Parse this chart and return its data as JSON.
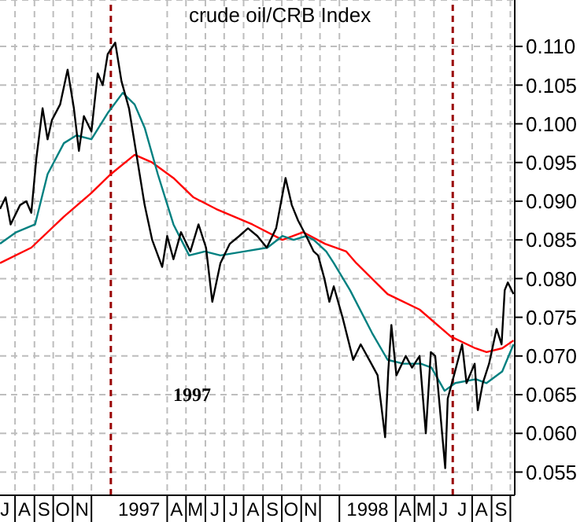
{
  "chart_data": {
    "type": "line",
    "title": "crude oil/CRB Index",
    "annotations": [
      "1997"
    ],
    "xlim": [
      "1996-07-08",
      "1998-10-08"
    ],
    "xticks": [
      {
        "value": "1996-07-16",
        "label": "J"
      },
      {
        "value": "1996-08-01",
        "label": null
      },
      {
        "value": "1996-08-16",
        "label": "A"
      },
      {
        "value": "1996-09-01",
        "label": null
      },
      {
        "value": "1996-09-16",
        "label": "S"
      },
      {
        "value": "1996-10-01",
        "label": null
      },
      {
        "value": "1996-10-16",
        "label": "O"
      },
      {
        "value": "1996-11-01",
        "label": null
      },
      {
        "value": "1996-11-16",
        "label": "N"
      },
      {
        "value": "1996-12-01",
        "label": null
      },
      {
        "value": "1997-02-15",
        "label": "1997"
      },
      {
        "value": "1997-04-01",
        "label": null
      },
      {
        "value": "1997-04-16",
        "label": "A"
      },
      {
        "value": "1997-05-01",
        "label": null
      },
      {
        "value": "1997-05-16",
        "label": "M"
      },
      {
        "value": "1997-06-01",
        "label": null
      },
      {
        "value": "1997-06-16",
        "label": "J"
      },
      {
        "value": "1997-07-01",
        "label": null
      },
      {
        "value": "1997-07-16",
        "label": "J"
      },
      {
        "value": "1997-08-01",
        "label": null
      },
      {
        "value": "1997-08-16",
        "label": "A"
      },
      {
        "value": "1997-09-01",
        "label": null
      },
      {
        "value": "1997-09-16",
        "label": "S"
      },
      {
        "value": "1997-10-01",
        "label": null
      },
      {
        "value": "1997-10-16",
        "label": "O"
      },
      {
        "value": "1997-11-01",
        "label": null
      },
      {
        "value": "1997-11-16",
        "label": "N"
      },
      {
        "value": "1997-12-01",
        "label": null
      },
      {
        "value": "1998-01-01",
        "label": null
      },
      {
        "value": "1998-02-15",
        "label": "1998"
      },
      {
        "value": "1998-04-01",
        "label": null
      },
      {
        "value": "1998-04-16",
        "label": "A"
      },
      {
        "value": "1998-05-01",
        "label": null
      },
      {
        "value": "1998-05-16",
        "label": "M"
      },
      {
        "value": "1998-06-01",
        "label": null
      },
      {
        "value": "1998-06-16",
        "label": "J"
      },
      {
        "value": "1998-07-16",
        "label": "J"
      },
      {
        "value": "1998-08-01",
        "label": null
      },
      {
        "value": "1998-08-16",
        "label": "A"
      },
      {
        "value": "1998-09-01",
        "label": null
      },
      {
        "value": "1998-09-16",
        "label": "S"
      },
      {
        "value": "1998-10-01",
        "label": null
      }
    ],
    "ylim": [
      0.052,
      0.116
    ],
    "yticks": [
      0.055,
      {
        "value": 0.06,
        "label": "0.060"
      },
      0.065,
      {
        "value": 0.07,
        "label": "0.070"
      },
      0.075,
      {
        "value": 0.08,
        "label": "0.080"
      },
      0.085,
      {
        "value": 0.09,
        "label": "0.090"
      },
      0.095,
      {
        "value": 0.1,
        "label": "0.100"
      },
      0.105,
      {
        "value": 0.11,
        "label": "0.110"
      }
    ],
    "grid": true,
    "marker": "none",
    "line_style": "solid",
    "ref_lines": [
      {
        "axis": "x",
        "value": "1997-01-01",
        "color": "#990000",
        "line_style": "dashed"
      },
      {
        "axis": "x",
        "value": "1998-07-01",
        "color": "#990000",
        "line_style": "dashed"
      }
    ],
    "series": [
      {
        "color": "#ff0000",
        "x": [
          "1996-07-08",
          "1996-08-27",
          "1996-10-18",
          "1996-11-30",
          "1997-01-01",
          "1997-02-08",
          "1997-03-08",
          "1997-04-11",
          "1997-05-13",
          "1997-06-18",
          "1997-08-15",
          "1997-10-02",
          "1997-11-04",
          "1997-12-09",
          "1998-01-12",
          "1998-01-28",
          "1998-03-19",
          "1998-05-09",
          "1998-06-28",
          "1998-08-06",
          "1998-08-24",
          "1998-09-18",
          "1998-10-06"
        ],
        "values": [
          0.082,
          0.084,
          0.088,
          0.091,
          0.0935,
          0.096,
          0.095,
          0.093,
          0.0905,
          0.089,
          0.087,
          0.085,
          0.086,
          0.0845,
          0.0835,
          0.082,
          0.078,
          0.076,
          0.0725,
          0.071,
          0.0705,
          0.071,
          0.072
        ]
      },
      {
        "color": "#008080",
        "x": [
          "1996-07-08",
          "1996-08-03",
          "1996-09-02",
          "1996-09-22",
          "1996-10-18",
          "1996-11-07",
          "1996-12-01",
          "1996-12-28",
          "1997-01-20",
          "1997-02-08",
          "1997-02-24",
          "1997-03-17",
          "1997-04-11",
          "1997-05-06",
          "1997-05-31",
          "1997-06-25",
          "1997-08-02",
          "1997-09-08",
          "1997-10-02",
          "1997-10-20",
          "1997-11-09",
          "1997-11-21",
          "1997-12-11",
          "1997-12-23",
          "1998-01-18",
          "1998-02-22",
          "1998-03-19",
          "1998-04-13",
          "1998-05-11",
          "1998-05-28",
          "1998-06-18",
          "1998-07-05",
          "1998-08-07",
          "1998-08-24",
          "1998-09-18",
          "1998-10-06"
        ],
        "values": [
          0.0845,
          0.086,
          0.087,
          0.0935,
          0.0975,
          0.0985,
          0.098,
          0.1015,
          0.104,
          0.1025,
          0.0995,
          0.0935,
          0.087,
          0.083,
          0.0835,
          0.083,
          0.0835,
          0.084,
          0.0855,
          0.085,
          0.0855,
          0.085,
          0.0835,
          0.082,
          0.0785,
          0.073,
          0.0695,
          0.069,
          0.069,
          0.0685,
          0.0655,
          0.0665,
          0.067,
          0.0665,
          0.068,
          0.0715
        ]
      },
      {
        "color": "#000000",
        "x": [
          "1996-07-08",
          "1996-07-17",
          "1996-07-25",
          "1996-08-09",
          "1996-08-19",
          "1996-08-27",
          "1996-09-04",
          "1996-09-14",
          "1996-09-22",
          "1996-09-29",
          "1996-10-12",
          "1996-10-24",
          "1996-11-03",
          "1996-11-11",
          "1996-11-19",
          "1996-12-01",
          "1996-12-11",
          "1996-12-19",
          "1996-12-27",
          "1997-01-08",
          "1997-01-18",
          "1997-01-30",
          "1997-02-12",
          "1997-02-24",
          "1997-03-08",
          "1997-03-24",
          "1997-04-01",
          "1997-04-11",
          "1997-04-23",
          "1997-05-08",
          "1997-05-21",
          "1997-06-02",
          "1997-06-12",
          "1997-06-25",
          "1997-07-10",
          "1997-07-25",
          "1997-08-08",
          "1997-08-23",
          "1997-09-07",
          "1997-09-22",
          "1997-10-07",
          "1997-10-17",
          "1997-10-27",
          "1997-11-09",
          "1997-11-21",
          "1997-11-28",
          "1997-12-08",
          "1997-12-16",
          "1997-12-23",
          "1998-01-06",
          "1998-01-23",
          "1998-02-04",
          "1998-02-21",
          "1998-03-03",
          "1998-03-15",
          "1998-03-20",
          "1998-03-25",
          "1998-04-02",
          "1998-04-17",
          "1998-04-27",
          "1998-05-09",
          "1998-05-19",
          "1998-05-27",
          "1998-06-03",
          "1998-06-19",
          "1998-06-23",
          "1998-07-03",
          "1998-07-16",
          "1998-07-23",
          "1998-08-05",
          "1998-08-10",
          "1998-08-18",
          "1998-08-28",
          "1998-09-09",
          "1998-09-17",
          "1998-09-22",
          "1998-09-27",
          "1998-10-06"
        ],
        "values": [
          0.089,
          0.0905,
          0.087,
          0.0895,
          0.09,
          0.0885,
          0.0955,
          0.102,
          0.098,
          0.1005,
          0.1025,
          0.107,
          0.102,
          0.0965,
          0.101,
          0.099,
          0.1065,
          0.105,
          0.109,
          0.1105,
          0.1055,
          0.102,
          0.0955,
          0.0895,
          0.085,
          0.0815,
          0.0855,
          0.0825,
          0.086,
          0.0835,
          0.087,
          0.084,
          0.077,
          0.082,
          0.0845,
          0.0855,
          0.0865,
          0.0855,
          0.084,
          0.0865,
          0.093,
          0.0895,
          0.0875,
          0.0855,
          0.0835,
          0.083,
          0.08,
          0.077,
          0.079,
          0.075,
          0.0695,
          0.0715,
          0.069,
          0.0675,
          0.0595,
          0.068,
          0.074,
          0.0675,
          0.07,
          0.0685,
          0.07,
          0.06,
          0.0705,
          0.07,
          0.0555,
          0.0645,
          0.0675,
          0.0715,
          0.0665,
          0.069,
          0.063,
          0.0665,
          0.069,
          0.0735,
          0.0715,
          0.0785,
          0.0795,
          0.078
        ]
      }
    ]
  }
}
